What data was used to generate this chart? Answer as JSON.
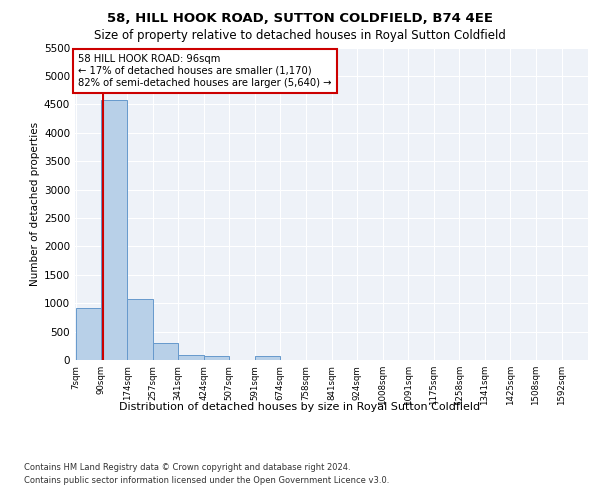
{
  "title": "58, HILL HOOK ROAD, SUTTON COLDFIELD, B74 4EE",
  "subtitle": "Size of property relative to detached houses in Royal Sutton Coldfield",
  "xlabel": "Distribution of detached houses by size in Royal Sutton Coldfield",
  "ylabel": "Number of detached properties",
  "footnote1": "Contains HM Land Registry data © Crown copyright and database right 2024.",
  "footnote2": "Contains public sector information licensed under the Open Government Licence v3.0.",
  "bar_color": "#b8d0e8",
  "bar_edge_color": "#6699cc",
  "subject_line_color": "#cc0000",
  "annotation_box_color": "#cc0000",
  "background_color": "#ffffff",
  "plot_bg_color": "#eef2f8",
  "grid_color": "#ffffff",
  "bins": [
    7,
    90,
    174,
    257,
    341,
    424,
    507,
    591,
    674,
    758,
    841,
    924,
    1008,
    1091,
    1175,
    1258,
    1341,
    1425,
    1508,
    1592,
    1675
  ],
  "counts": [
    920,
    4570,
    1075,
    295,
    80,
    65,
    0,
    70,
    0,
    0,
    0,
    0,
    0,
    0,
    0,
    0,
    0,
    0,
    0,
    0
  ],
  "subject_value": 96,
  "annotation_title": "58 HILL HOOK ROAD: 96sqm",
  "annotation_line1": "← 17% of detached houses are smaller (1,170)",
  "annotation_line2": "82% of semi-detached houses are larger (5,640) →",
  "ylim": [
    0,
    5500
  ],
  "yticks": [
    0,
    500,
    1000,
    1500,
    2000,
    2500,
    3000,
    3500,
    4000,
    4500,
    5000,
    5500
  ],
  "title_fontsize": 9.5,
  "subtitle_fontsize": 8.5,
  "ylabel_fontsize": 7.5,
  "xlabel_fontsize": 8.0,
  "ytick_fontsize": 7.5,
  "xtick_fontsize": 6.2,
  "annotation_fontsize": 7.2,
  "footnote_fontsize": 6.0
}
